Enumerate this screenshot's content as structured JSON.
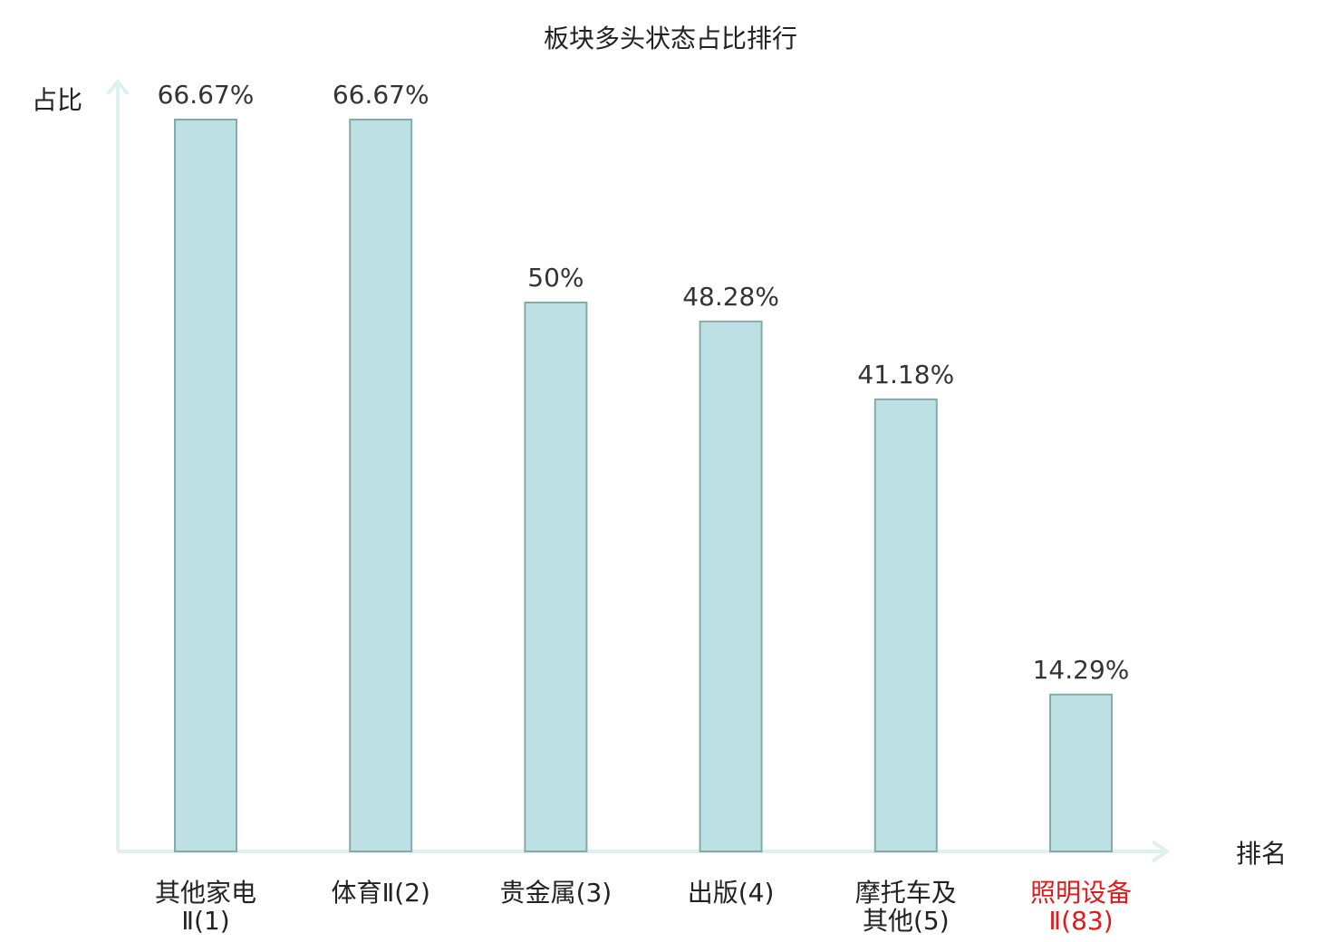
{
  "chart_data": {
    "type": "bar",
    "title": "板块多头状态占比排行",
    "xlabel": "排名",
    "ylabel": "占比",
    "ylim": [
      0,
      70
    ],
    "grid": false,
    "categories": [
      [
        "其他家电",
        "Ⅱ(1)"
      ],
      [
        "体育Ⅱ(2)"
      ],
      [
        "贵金属(3)"
      ],
      [
        "出版(4)"
      ],
      [
        "摩托车及",
        "其他(5)"
      ],
      [
        "照明设备",
        "Ⅱ(83)"
      ]
    ],
    "values": [
      66.67,
      66.67,
      50,
      48.28,
      41.18,
      14.29
    ],
    "value_labels": [
      "66.67%",
      "66.67%",
      "50%",
      "48.28%",
      "41.18%",
      "14.29%"
    ],
    "highlight_index": 5,
    "colors": {
      "bar_fill": "#bce0e3",
      "bar_stroke": "#86aaaa",
      "axis": "#dff1ef",
      "text": "#222222",
      "highlight_text": "#e31a1a"
    }
  }
}
